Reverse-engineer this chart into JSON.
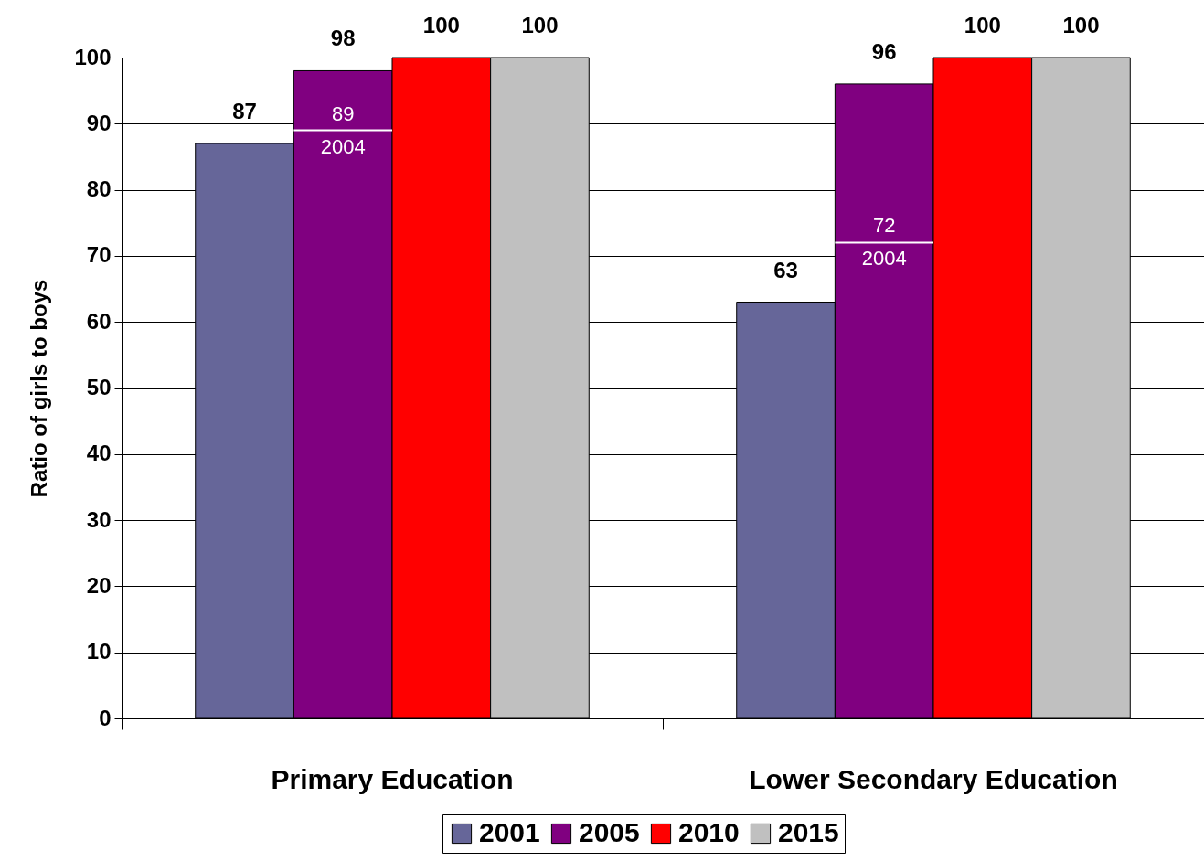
{
  "chart_data": {
    "type": "bar",
    "ylabel": "Ratio of girls to boys",
    "categories": [
      "Primary Education",
      "Lower Secondary Education"
    ],
    "series": [
      {
        "name": "2001",
        "color": "#666699",
        "values": [
          87,
          63
        ]
      },
      {
        "name": "2005",
        "color": "#800080",
        "values": [
          98,
          96
        ]
      },
      {
        "name": "2010",
        "color": "#ff0000",
        "values": [
          100,
          100
        ]
      },
      {
        "name": "2015",
        "color": "#c0c0c0",
        "values": [
          100,
          100
        ]
      }
    ],
    "ylim": [
      0,
      100
    ],
    "yticks": [
      0,
      10,
      20,
      30,
      40,
      50,
      60,
      70,
      80,
      90,
      100
    ],
    "grid": "y",
    "legend": "bottom",
    "data_labels": true,
    "annotations": [
      {
        "text": "89",
        "x": "Primary Education",
        "y": 89
      },
      {
        "text": "2004",
        "x": "Primary Education",
        "y": 89
      },
      {
        "text": "72",
        "x": "Lower Secondary Education",
        "y": 72
      },
      {
        "text": "2004",
        "x": "Lower Secondary Education",
        "y": 72
      }
    ]
  }
}
